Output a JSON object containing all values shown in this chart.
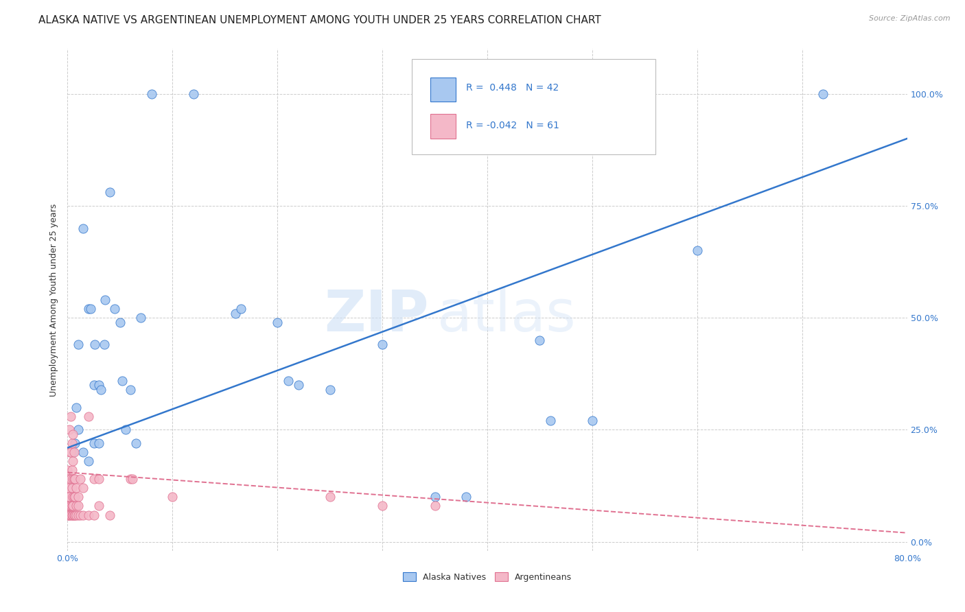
{
  "title": "ALASKA NATIVE VS ARGENTINEAN UNEMPLOYMENT AMONG YOUTH UNDER 25 YEARS CORRELATION CHART",
  "source": "Source: ZipAtlas.com",
  "ylabel": "Unemployment Among Youth under 25 years",
  "xlim": [
    0.0,
    0.8
  ],
  "ylim": [
    -0.02,
    1.1
  ],
  "xticks": [
    0.0,
    0.1,
    0.2,
    0.3,
    0.4,
    0.5,
    0.6,
    0.7,
    0.8
  ],
  "xticklabels": [
    "0.0%",
    "",
    "",
    "",
    "",
    "",
    "",
    "",
    "80.0%"
  ],
  "ytick_positions": [
    0.0,
    0.25,
    0.5,
    0.75,
    1.0
  ],
  "yticklabels_right": [
    "0.0%",
    "25.0%",
    "50.0%",
    "75.0%",
    "100.0%"
  ],
  "legend_R_blue": "0.448",
  "legend_N_blue": "42",
  "legend_R_pink": "-0.042",
  "legend_N_pink": "61",
  "watermark_zip": "ZIP",
  "watermark_atlas": "atlas",
  "blue_color": "#a8c8f0",
  "pink_color": "#f4b8c8",
  "line_blue": "#3377cc",
  "line_pink": "#e07090",
  "blue_scatter": [
    [
      0.005,
      0.2
    ],
    [
      0.007,
      0.22
    ],
    [
      0.008,
      0.3
    ],
    [
      0.01,
      0.44
    ],
    [
      0.015,
      0.7
    ],
    [
      0.02,
      0.52
    ],
    [
      0.022,
      0.52
    ],
    [
      0.025,
      0.35
    ],
    [
      0.026,
      0.44
    ],
    [
      0.03,
      0.35
    ],
    [
      0.032,
      0.34
    ],
    [
      0.035,
      0.44
    ],
    [
      0.036,
      0.54
    ],
    [
      0.04,
      0.78
    ],
    [
      0.045,
      0.52
    ],
    [
      0.05,
      0.49
    ],
    [
      0.052,
      0.36
    ],
    [
      0.055,
      0.25
    ],
    [
      0.06,
      0.34
    ],
    [
      0.065,
      0.22
    ],
    [
      0.07,
      0.5
    ],
    [
      0.08,
      1.0
    ],
    [
      0.12,
      1.0
    ],
    [
      0.16,
      0.51
    ],
    [
      0.165,
      0.52
    ],
    [
      0.2,
      0.49
    ],
    [
      0.21,
      0.36
    ],
    [
      0.22,
      0.35
    ],
    [
      0.25,
      0.34
    ],
    [
      0.3,
      0.44
    ],
    [
      0.35,
      0.1
    ],
    [
      0.38,
      0.1
    ],
    [
      0.45,
      0.45
    ],
    [
      0.46,
      0.27
    ],
    [
      0.5,
      0.27
    ],
    [
      0.6,
      0.65
    ],
    [
      0.72,
      1.0
    ],
    [
      0.01,
      0.25
    ],
    [
      0.015,
      0.2
    ],
    [
      0.02,
      0.18
    ],
    [
      0.025,
      0.22
    ],
    [
      0.03,
      0.22
    ]
  ],
  "pink_scatter": [
    [
      0.0,
      0.06
    ],
    [
      0.0,
      0.08
    ],
    [
      0.0,
      0.1
    ],
    [
      0.0,
      0.12
    ],
    [
      0.0,
      0.14
    ],
    [
      0.0,
      0.16
    ],
    [
      0.001,
      0.06
    ],
    [
      0.001,
      0.08
    ],
    [
      0.001,
      0.1
    ],
    [
      0.001,
      0.12
    ],
    [
      0.002,
      0.06
    ],
    [
      0.002,
      0.08
    ],
    [
      0.002,
      0.1
    ],
    [
      0.002,
      0.2
    ],
    [
      0.002,
      0.25
    ],
    [
      0.003,
      0.06
    ],
    [
      0.003,
      0.08
    ],
    [
      0.003,
      0.14
    ],
    [
      0.003,
      0.2
    ],
    [
      0.003,
      0.28
    ],
    [
      0.004,
      0.06
    ],
    [
      0.004,
      0.08
    ],
    [
      0.004,
      0.12
    ],
    [
      0.004,
      0.16
    ],
    [
      0.004,
      0.22
    ],
    [
      0.005,
      0.06
    ],
    [
      0.005,
      0.08
    ],
    [
      0.005,
      0.1
    ],
    [
      0.005,
      0.14
    ],
    [
      0.005,
      0.18
    ],
    [
      0.005,
      0.24
    ],
    [
      0.006,
      0.06
    ],
    [
      0.006,
      0.1
    ],
    [
      0.006,
      0.14
    ],
    [
      0.006,
      0.2
    ],
    [
      0.007,
      0.06
    ],
    [
      0.007,
      0.1
    ],
    [
      0.007,
      0.14
    ],
    [
      0.008,
      0.06
    ],
    [
      0.008,
      0.08
    ],
    [
      0.008,
      0.12
    ],
    [
      0.01,
      0.06
    ],
    [
      0.01,
      0.1
    ],
    [
      0.01,
      0.08
    ],
    [
      0.012,
      0.06
    ],
    [
      0.012,
      0.14
    ],
    [
      0.015,
      0.06
    ],
    [
      0.015,
      0.12
    ],
    [
      0.02,
      0.28
    ],
    [
      0.02,
      0.06
    ],
    [
      0.025,
      0.14
    ],
    [
      0.025,
      0.06
    ],
    [
      0.03,
      0.08
    ],
    [
      0.03,
      0.14
    ],
    [
      0.04,
      0.06
    ],
    [
      0.06,
      0.14
    ],
    [
      0.062,
      0.14
    ],
    [
      0.1,
      0.1
    ],
    [
      0.25,
      0.1
    ],
    [
      0.3,
      0.08
    ],
    [
      0.35,
      0.08
    ]
  ],
  "blue_line_x": [
    0.0,
    0.8
  ],
  "blue_line_y": [
    0.21,
    0.9
  ],
  "pink_line_x": [
    0.0,
    0.8
  ],
  "pink_line_y": [
    0.155,
    0.02
  ],
  "background_color": "#ffffff",
  "grid_color": "#cccccc",
  "title_fontsize": 11,
  "axis_label_fontsize": 9,
  "tick_fontsize": 9,
  "source_fontsize": 8
}
